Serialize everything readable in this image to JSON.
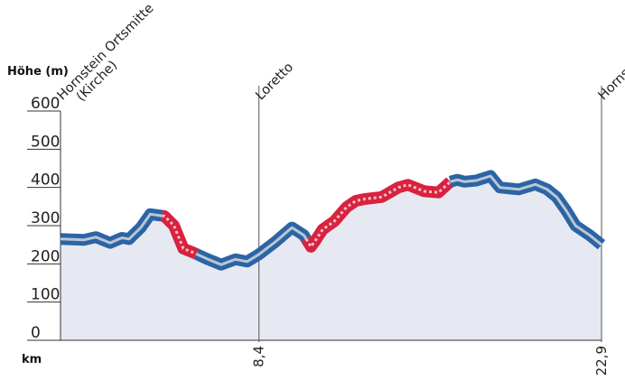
{
  "chart_data": {
    "type": "area",
    "ylabel": "Höhe (m)",
    "xlabel": "km",
    "ylim": [
      0,
      600
    ],
    "xlim": [
      0,
      22.9
    ],
    "y_ticks": [
      "0",
      "100",
      "200",
      "300",
      "400",
      "500",
      "600"
    ],
    "x_ticks": [
      {
        "value": 8.4,
        "label": "8,4"
      },
      {
        "value": 22.9,
        "label": "22,9"
      }
    ],
    "waypoints": [
      {
        "km": 0,
        "lines": [
          "Hornstein Ortsmitte",
          "(Kirche)"
        ]
      },
      {
        "km": 8.4,
        "lines": [
          "Loretto"
        ]
      },
      {
        "km": 22.9,
        "lines": [
          "Hornstein Ortsmitte"
        ]
      }
    ],
    "elevation": {
      "km": [
        0,
        1,
        1.5,
        2.1,
        2.6,
        2.9,
        3.4,
        3.8,
        4.4,
        4.8,
        5.2,
        5.6,
        6.2,
        6.8,
        7.4,
        7.9,
        8.4,
        9.1,
        9.8,
        10.3,
        10.6,
        10.8,
        11.1,
        11.6,
        12.1,
        12.5,
        12.9,
        13.6,
        14.3,
        14.7,
        15.4,
        16,
        16.5,
        16.8,
        17.1,
        17.6,
        18.2,
        18.6,
        18.9,
        19.4,
        20.1,
        20.6,
        21,
        21.4,
        21.8,
        22.4,
        22.9
      ],
      "elevation_m": [
        265,
        263,
        270,
        255,
        268,
        265,
        295,
        330,
        325,
        300,
        240,
        230,
        213,
        198,
        212,
        206,
        225,
        258,
        295,
        275,
        245,
        262,
        290,
        312,
        348,
        365,
        370,
        375,
        400,
        407,
        390,
        387,
        415,
        420,
        415,
        418,
        430,
        400,
        398,
        395,
        408,
        395,
        375,
        340,
        300,
        275,
        250
      ]
    },
    "segments": [
      {
        "from_km": 0,
        "to_km": 4.3,
        "surface": "blue"
      },
      {
        "from_km": 4.3,
        "to_km": 5.75,
        "surface": "red"
      },
      {
        "from_km": 5.75,
        "to_km": 10.4,
        "surface": "blue"
      },
      {
        "from_km": 10.4,
        "to_km": 16.5,
        "surface": "red"
      },
      {
        "from_km": 16.5,
        "to_km": 22.9,
        "surface": "blue"
      }
    ],
    "grid": false,
    "colors": {
      "fill": "#e7e9f2",
      "blue_band": "#2c64a5",
      "blue_center": "#b9c7d3",
      "red_band": "#d8223f",
      "red_center": "#f6c0c6",
      "marker_line": "#555555",
      "axis": "#333333"
    }
  }
}
